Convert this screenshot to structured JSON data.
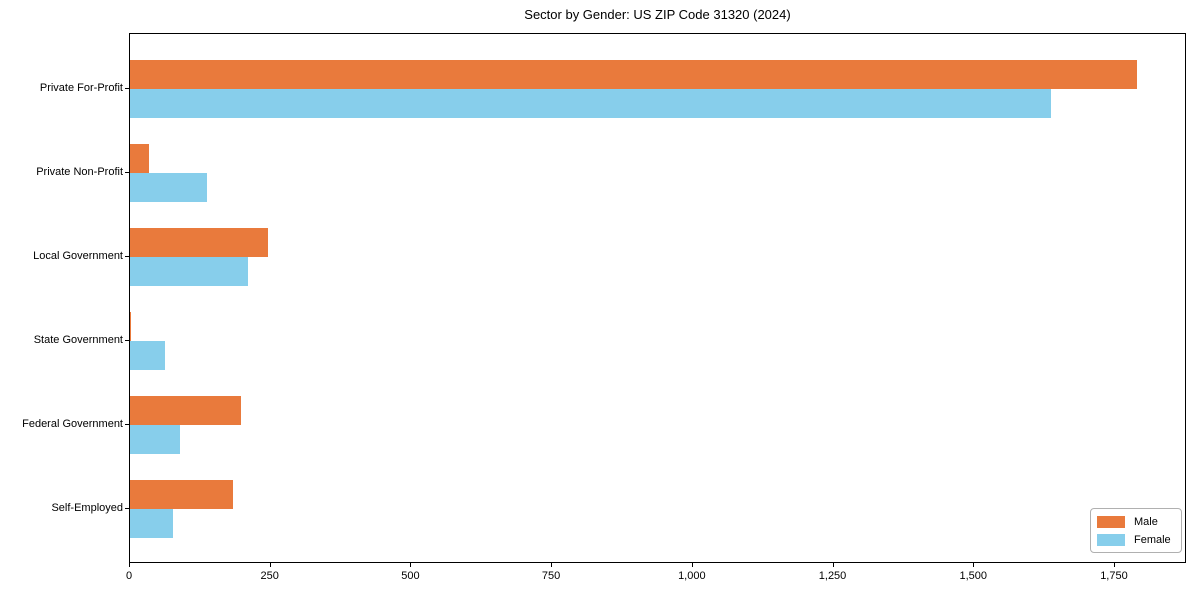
{
  "title": "Sector by Gender: US ZIP Code 31320 (2024)",
  "colors": {
    "male": "#e97a3c",
    "female": "#87ceeb",
    "spine": "#000000",
    "legend_border": "#b0b0b0",
    "background": "#ffffff"
  },
  "legend": {
    "position": "lower right",
    "items": [
      {
        "label": "Male",
        "color": "#e97a3c"
      },
      {
        "label": "Female",
        "color": "#87ceeb"
      }
    ]
  },
  "chart_data": {
    "type": "bar",
    "orientation": "horizontal",
    "title": "Sector by Gender: US ZIP Code 31320 (2024)",
    "categories": [
      "Private For-Profit",
      "Private Non-Profit",
      "Local Government",
      "State Government",
      "Federal Government",
      "Self-Employed"
    ],
    "series": [
      {
        "name": "Male",
        "color": "#e97a3c",
        "values": [
          1789,
          34,
          245,
          2,
          197,
          183
        ]
      },
      {
        "name": "Female",
        "color": "#87ceeb",
        "values": [
          1637,
          136,
          210,
          62,
          88,
          76
        ]
      }
    ],
    "xlabel": "",
    "ylabel": "",
    "xlim": [
      0,
      1878
    ],
    "xticks": [
      0,
      250,
      500,
      750,
      1000,
      1250,
      1500,
      1750
    ],
    "xtick_labels": [
      "0",
      "250",
      "500",
      "750",
      "1,000",
      "1,250",
      "1,500",
      "1,750"
    ],
    "grid": false,
    "legend_position": "lower right"
  }
}
